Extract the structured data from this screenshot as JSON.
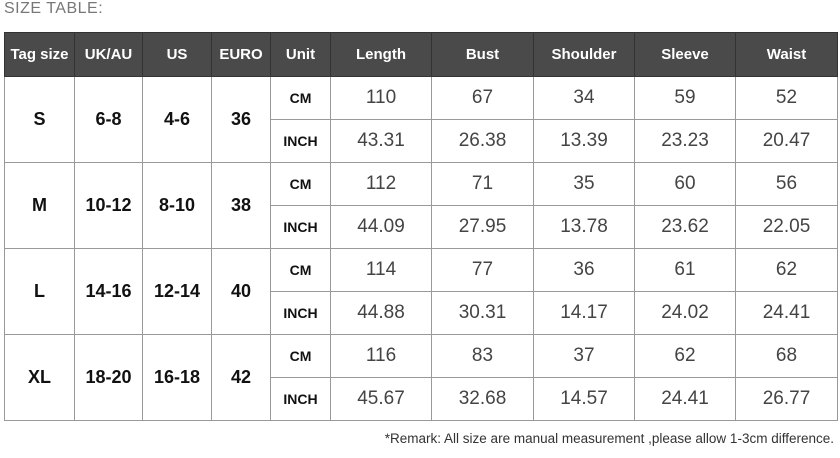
{
  "title": "SIZE TABLE:",
  "headers": [
    "Tag size",
    "UK/AU",
    "US",
    "EURO",
    "Unit",
    "Length",
    "Bust",
    "Shoulder",
    "Sleeve",
    "Waist"
  ],
  "rows": [
    {
      "tag": "S",
      "uk": "6-8",
      "us": "4-6",
      "euro": "36",
      "cm": {
        "unit": "CM",
        "values": [
          "110",
          "67",
          "34",
          "59",
          "52"
        ]
      },
      "inch": {
        "unit": "INCH",
        "values": [
          "43.31",
          "26.38",
          "13.39",
          "23.23",
          "20.47"
        ]
      }
    },
    {
      "tag": "M",
      "uk": "10-12",
      "us": "8-10",
      "euro": "38",
      "cm": {
        "unit": "CM",
        "values": [
          "112",
          "71",
          "35",
          "60",
          "56"
        ]
      },
      "inch": {
        "unit": "INCH",
        "values": [
          "44.09",
          "27.95",
          "13.78",
          "23.62",
          "22.05"
        ]
      }
    },
    {
      "tag": "L",
      "uk": "14-16",
      "us": "12-14",
      "euro": "40",
      "cm": {
        "unit": "CM",
        "values": [
          "114",
          "77",
          "36",
          "61",
          "62"
        ]
      },
      "inch": {
        "unit": "INCH",
        "values": [
          "44.88",
          "30.31",
          "14.17",
          "24.02",
          "24.41"
        ]
      }
    },
    {
      "tag": "XL",
      "uk": "18-20",
      "us": "16-18",
      "euro": "42",
      "cm": {
        "unit": "CM",
        "values": [
          "116",
          "83",
          "37",
          "62",
          "68"
        ]
      },
      "inch": {
        "unit": "INCH",
        "values": [
          "45.67",
          "32.68",
          "14.57",
          "24.41",
          "26.77"
        ]
      }
    }
  ],
  "remark": "*Remark: All size are manual measurement ,please allow 1-3cm difference."
}
